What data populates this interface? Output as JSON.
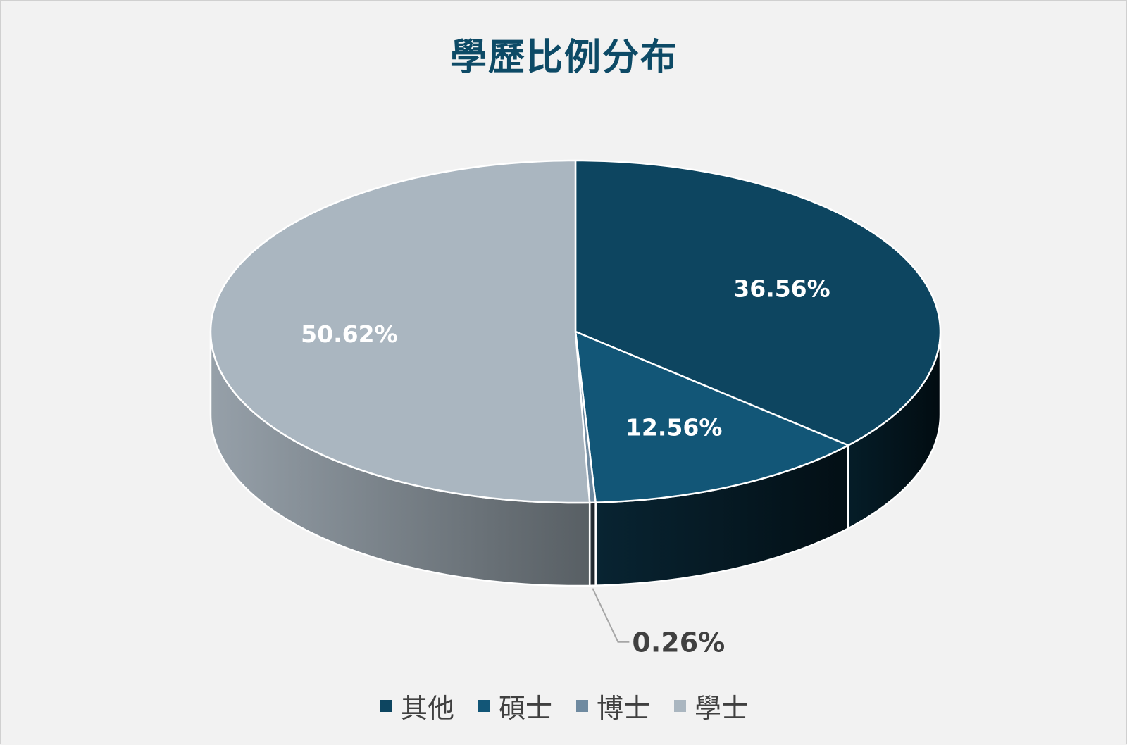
{
  "chart_data": {
    "type": "pie",
    "title": "學歷比例分布",
    "style": "3d",
    "slices": [
      {
        "name": "其他",
        "value": 36.56,
        "label": "36.56%",
        "color": "#0d4560"
      },
      {
        "name": "碩士",
        "value": 12.56,
        "label": "12.56%",
        "color": "#125677"
      },
      {
        "name": "博士",
        "value": 0.26,
        "label": "0.26%",
        "color": "#6f8aa0"
      },
      {
        "name": "學士",
        "value": 50.62,
        "label": "50.62%",
        "color": "#aab6c0"
      }
    ],
    "legend": {
      "position": "bottom"
    }
  }
}
